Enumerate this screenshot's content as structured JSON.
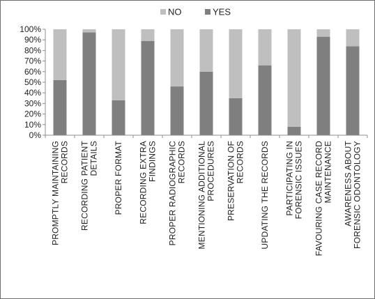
{
  "chart_data": {
    "type": "bar",
    "stacked": true,
    "percent": true,
    "categories": [
      [
        "PROMPTLY MAINTAINING",
        "RECORDS"
      ],
      [
        "RECORDING PATIENT",
        "DETAILS"
      ],
      [
        "PROPER FORMAT"
      ],
      [
        "RECORDING EXTRA",
        "FINDINGS"
      ],
      [
        "PROPER RADIOGRAPHIC",
        "RECORDS"
      ],
      [
        "MENTIONING ADDITIONAL",
        "PROCEDURES"
      ],
      [
        "PRESERVATION OF",
        "RECORDS"
      ],
      [
        "UPDATING THE RECORDS"
      ],
      [
        "PARTICIPATING IN",
        "FORENSIC ISSUES"
      ],
      [
        "FAVOURING CASE RECORD",
        "MAINTENANCE"
      ],
      [
        "AWARENESS ABOUT",
        "FORENSIC ODONTOLOGY"
      ]
    ],
    "series": [
      {
        "name": "YES",
        "color": "#7f7f7f",
        "values": [
          52,
          97,
          33,
          89,
          46,
          60,
          35,
          66,
          8,
          93,
          84
        ]
      },
      {
        "name": "NO",
        "color": "#bfbfbf",
        "values": [
          48,
          3,
          67,
          11,
          54,
          40,
          65,
          34,
          92,
          7,
          16
        ]
      }
    ],
    "legend": {
      "order": [
        "NO",
        "YES"
      ],
      "placement": "top-center"
    },
    "y_ticks": [
      "0%",
      "10%",
      "20%",
      "30%",
      "40%",
      "50%",
      "60%",
      "70%",
      "80%",
      "90%",
      "100%"
    ],
    "ylim": [
      0,
      100
    ],
    "grid": false,
    "title": "",
    "xlabel": "",
    "ylabel": ""
  }
}
